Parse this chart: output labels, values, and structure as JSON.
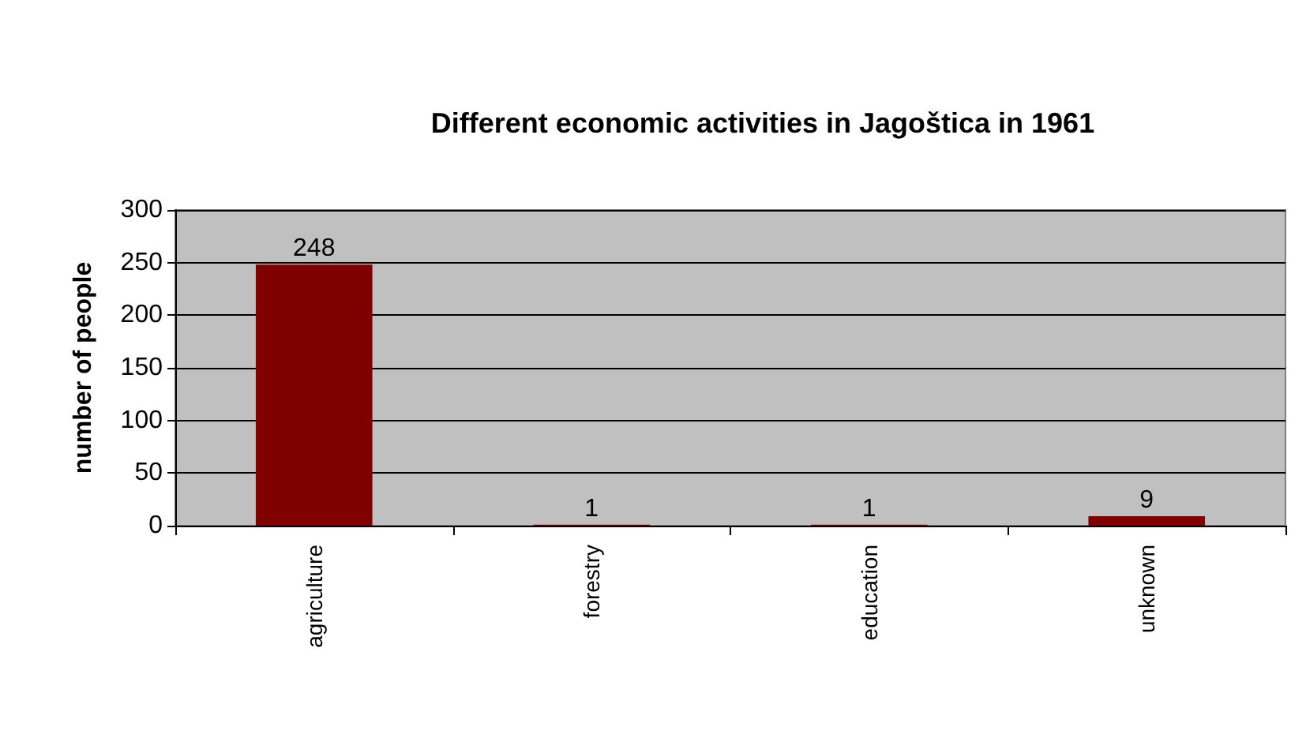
{
  "chart_data": {
    "type": "bar",
    "title": "Different economic activities in Jagoštica in 1961",
    "ylabel": "number of people",
    "categories": [
      "agriculture",
      "forestry",
      "education",
      "unknown"
    ],
    "values": [
      248,
      1,
      1,
      9
    ],
    "color": "#800000",
    "ylim": [
      0,
      300
    ],
    "yticks": [
      0,
      50,
      100,
      150,
      200,
      250,
      300
    ],
    "grid": "y",
    "data_labels": true
  }
}
